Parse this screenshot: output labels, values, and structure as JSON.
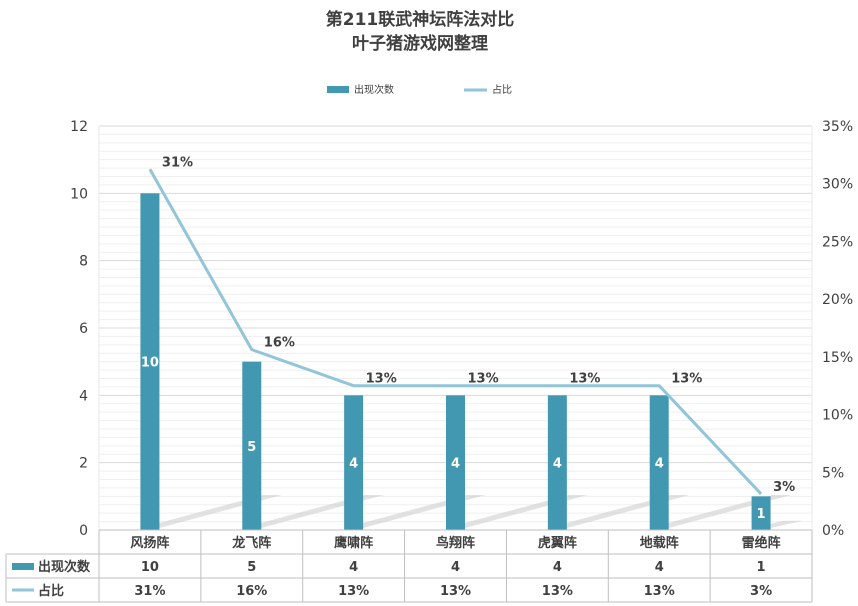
{
  "chart_data": {
    "type": "bar",
    "title": "第211联武神坛阵法对比",
    "subtitle": "叶子猪游戏网整理",
    "categories": [
      "风扬阵",
      "龙飞阵",
      "鹰啸阵",
      "鸟翔阵",
      "虎翼阵",
      "地载阵",
      "雷绝阵"
    ],
    "series": [
      {
        "name": "出现次数",
        "type": "bar",
        "axis": "left",
        "values": [
          10,
          5,
          4,
          4,
          4,
          4,
          1
        ],
        "labels": [
          "10",
          "5",
          "4",
          "4",
          "4",
          "4",
          "1"
        ],
        "color": "#4298b0"
      },
      {
        "name": "占比",
        "type": "line",
        "axis": "right",
        "values": [
          31.25,
          15.625,
          12.5,
          12.5,
          12.5,
          12.5,
          3.125
        ],
        "labels": [
          "31%",
          "16%",
          "13%",
          "13%",
          "13%",
          "13%",
          "3%"
        ],
        "color": "#92c5d7"
      }
    ],
    "ylim_left": [
      0,
      12
    ],
    "yticks_left": [
      "0",
      "2",
      "4",
      "6",
      "8",
      "10",
      "12"
    ],
    "ylim_right": [
      0,
      35
    ],
    "yticks_right": [
      "0%",
      "5%",
      "10%",
      "15%",
      "20%",
      "25%",
      "30%",
      "35%"
    ],
    "legend_position": "top-center",
    "grid": true,
    "data_table": true
  }
}
